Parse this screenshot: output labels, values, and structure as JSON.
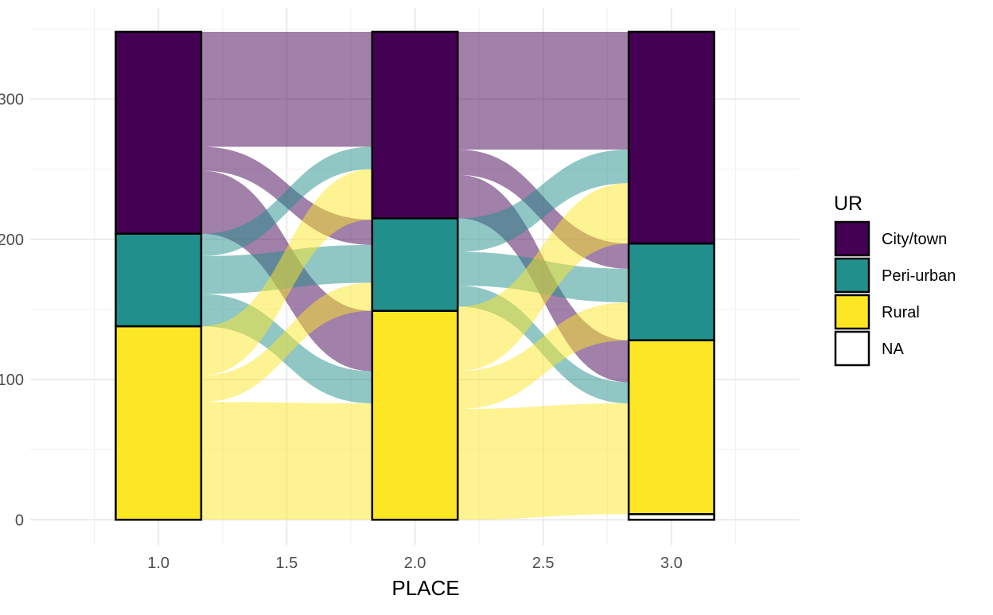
{
  "chart_data": {
    "type": "alluvial",
    "xlabel": "PLACE",
    "ylabel": "",
    "title": "",
    "xlim": [
      0.5,
      3.5
    ],
    "ylim": [
      -18,
      365
    ],
    "x_ticks": [
      1.0,
      1.5,
      2.0,
      2.5,
      3.0
    ],
    "x_tick_labels": [
      "1.0",
      "1.5",
      "2.0",
      "2.5",
      "3.0"
    ],
    "y_ticks": [
      0,
      100,
      200,
      300
    ],
    "y_tick_labels": [
      "0",
      "100",
      "200",
      "300"
    ],
    "legend": {
      "title": "UR",
      "position": "right",
      "entries": [
        {
          "key": "City/town",
          "label": "City/town",
          "color": "#440154"
        },
        {
          "key": "Peri-urban",
          "label": "Peri-urban",
          "color": "#21908C"
        },
        {
          "key": "Rural",
          "label": "Rural",
          "color": "#FDE725"
        },
        {
          "key": "NA",
          "label": "NA",
          "color": "#FFFFFF"
        }
      ]
    },
    "strata": [
      {
        "x": 1.0,
        "segments": [
          {
            "category": "Rural",
            "value": 138
          },
          {
            "category": "Peri-urban",
            "value": 66
          },
          {
            "category": "City/town",
            "value": 144
          }
        ]
      },
      {
        "x": 2.0,
        "segments": [
          {
            "category": "Rural",
            "value": 149
          },
          {
            "category": "Peri-urban",
            "value": 66
          },
          {
            "category": "City/town",
            "value": 133
          }
        ]
      },
      {
        "x": 3.0,
        "segments": [
          {
            "category": "NA",
            "value": 4
          },
          {
            "category": "Rural",
            "value": 124
          },
          {
            "category": "Peri-urban",
            "value": 69
          },
          {
            "category": "City/town",
            "value": 151
          }
        ]
      }
    ],
    "flows": [
      {
        "from_x": 1.0,
        "to_x": 2.0,
        "color_by": "City/town",
        "from_range": [
          266,
          348
        ],
        "to_range": [
          266,
          348
        ]
      },
      {
        "from_x": 1.0,
        "to_x": 2.0,
        "color_by": "City/town",
        "from_range": [
          249,
          266
        ],
        "to_range": [
          196,
          214
        ]
      },
      {
        "from_x": 1.0,
        "to_x": 2.0,
        "color_by": "City/town",
        "from_range": [
          204,
          249
        ],
        "to_range": [
          106,
          149
        ]
      },
      {
        "from_x": 1.0,
        "to_x": 2.0,
        "color_by": "Peri-urban",
        "from_range": [
          188,
          204
        ],
        "to_range": [
          250,
          266
        ]
      },
      {
        "from_x": 1.0,
        "to_x": 2.0,
        "color_by": "Peri-urban",
        "from_range": [
          161,
          188
        ],
        "to_range": [
          169,
          196
        ]
      },
      {
        "from_x": 1.0,
        "to_x": 2.0,
        "color_by": "Peri-urban",
        "from_range": [
          138,
          161
        ],
        "to_range": [
          83,
          106
        ]
      },
      {
        "from_x": 1.0,
        "to_x": 2.0,
        "color_by": "Rural",
        "from_range": [
          103,
          138
        ],
        "to_range": [
          214,
          250
        ]
      },
      {
        "from_x": 1.0,
        "to_x": 2.0,
        "color_by": "Rural",
        "from_range": [
          84,
          103
        ],
        "to_range": [
          149,
          169
        ]
      },
      {
        "from_x": 1.0,
        "to_x": 2.0,
        "color_by": "Rural",
        "from_range": [
          0,
          84
        ],
        "to_range": [
          0,
          83
        ]
      },
      {
        "from_x": 2.0,
        "to_x": 3.0,
        "color_by": "City/town",
        "from_range": [
          264,
          348
        ],
        "to_range": [
          264,
          348
        ]
      },
      {
        "from_x": 2.0,
        "to_x": 3.0,
        "color_by": "City/town",
        "from_range": [
          246,
          264
        ],
        "to_range": [
          179,
          197
        ]
      },
      {
        "from_x": 2.0,
        "to_x": 3.0,
        "color_by": "City/town",
        "from_range": [
          215,
          246
        ],
        "to_range": [
          98,
          128
        ]
      },
      {
        "from_x": 2.0,
        "to_x": 3.0,
        "color_by": "Peri-urban",
        "from_range": [
          191,
          215
        ],
        "to_range": [
          240,
          264
        ]
      },
      {
        "from_x": 2.0,
        "to_x": 3.0,
        "color_by": "Peri-urban",
        "from_range": [
          167,
          191
        ],
        "to_range": [
          155,
          179
        ]
      },
      {
        "from_x": 2.0,
        "to_x": 3.0,
        "color_by": "Peri-urban",
        "from_range": [
          152,
          167
        ],
        "to_range": [
          83,
          98
        ]
      },
      {
        "from_x": 2.0,
        "to_x": 3.0,
        "color_by": "Rural",
        "from_range": [
          106,
          152
        ],
        "to_range": [
          197,
          240
        ]
      },
      {
        "from_x": 2.0,
        "to_x": 3.0,
        "color_by": "Rural",
        "from_range": [
          79,
          106
        ],
        "to_range": [
          128,
          155
        ]
      },
      {
        "from_x": 2.0,
        "to_x": 3.0,
        "color_by": "Rural",
        "from_range": [
          0,
          79
        ],
        "to_range": [
          4,
          83
        ]
      }
    ],
    "grid": true,
    "flow_opacity": 0.5
  }
}
